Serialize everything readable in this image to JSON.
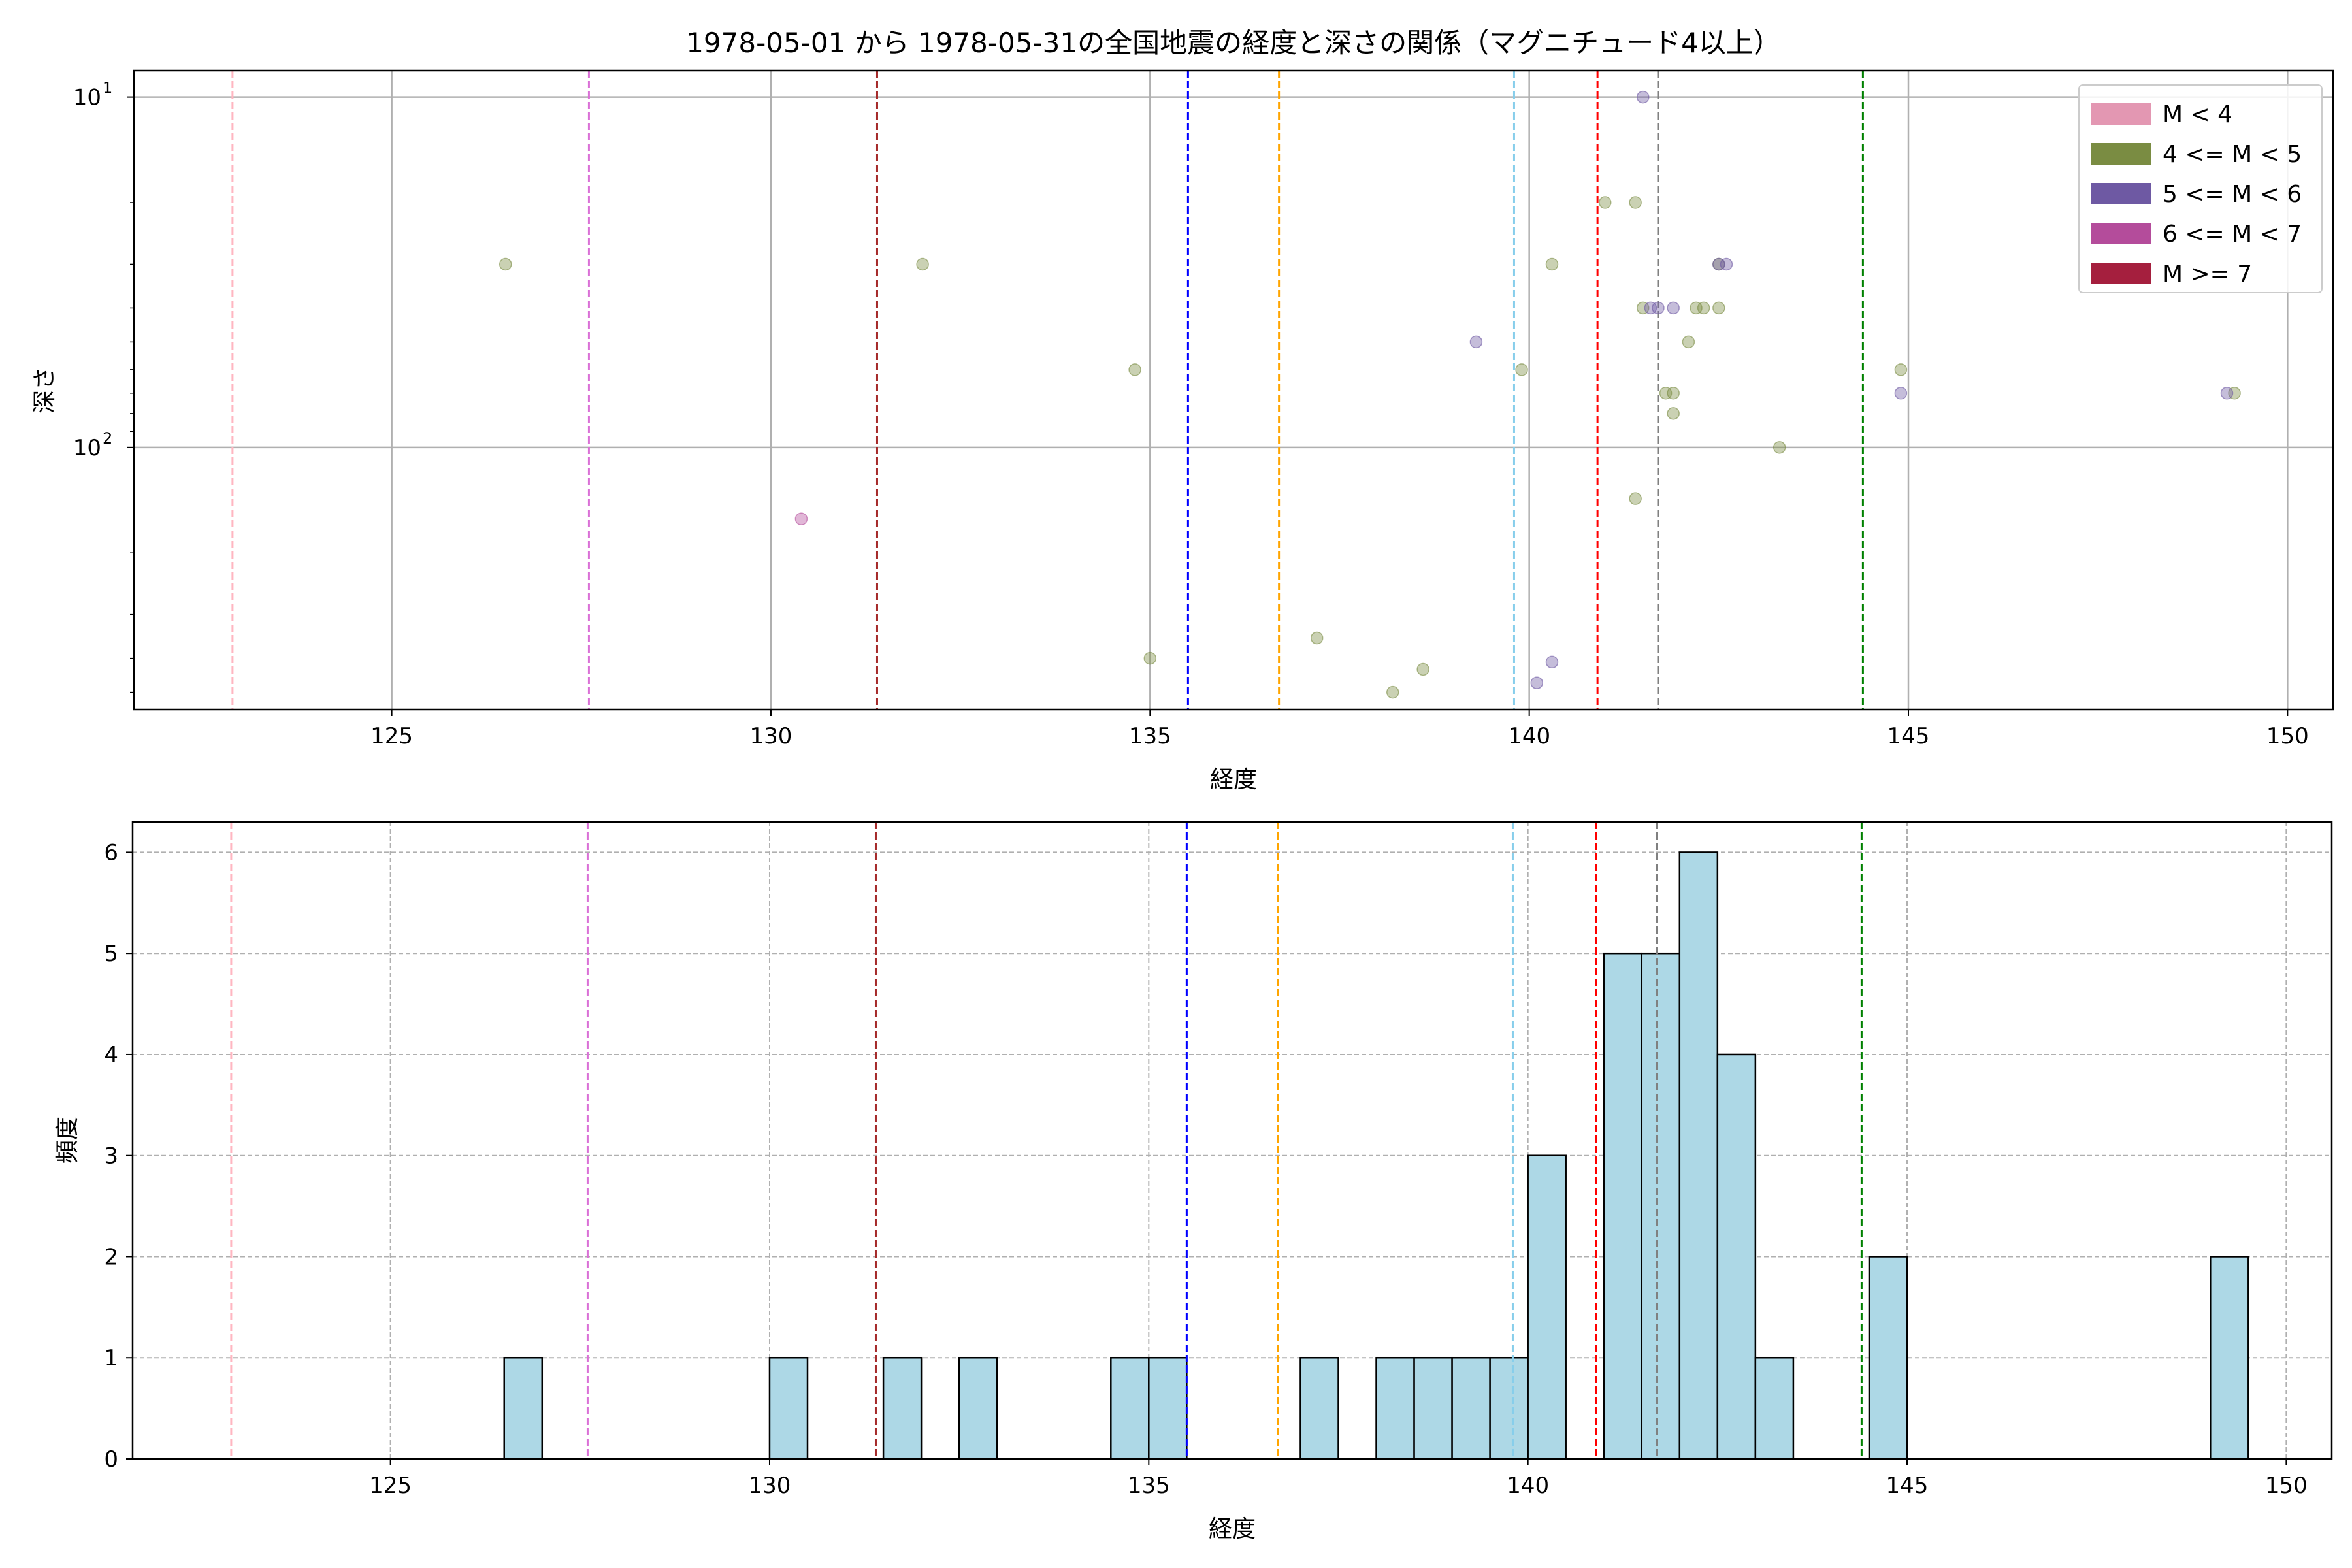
{
  "chart_data": [
    {
      "type": "scatter",
      "title": "1978-05-01 から 1978-05-31の全国地震の経度と深さの関係（マグニチュード4以上）",
      "xlabel": "経度",
      "ylabel": "深さ",
      "xlim": [
        121.6,
        150.6
      ],
      "ylim_log": [
        560,
        8.4
      ],
      "y_scale": "log",
      "y_inverted": true,
      "grid": true,
      "x_ticks": [
        125,
        130,
        135,
        140,
        145,
        150
      ],
      "y_ticks": [
        {
          "value": 10,
          "base": "10",
          "exp": "1"
        },
        {
          "value": 100,
          "base": "10",
          "exp": "2"
        }
      ],
      "y_minor_ticks": [
        20,
        30,
        40,
        50,
        60,
        70,
        80,
        90,
        200,
        300,
        400,
        500
      ],
      "legend": {
        "placement": "top-right",
        "entries": [
          {
            "label": "M < 4",
            "color": "#e397b2"
          },
          {
            "label": "4 <= M < 5",
            "color": "#7a8c42"
          },
          {
            "label": "5 <= M < 6",
            "color": "#6e59a3"
          },
          {
            "label": "6 <= M < 7",
            "color": "#b44c9b"
          },
          {
            "label": "M >= 7",
            "color": "#a51f3e"
          }
        ]
      },
      "vlines": [
        {
          "x": 122.9,
          "color": "#ffb6c1"
        },
        {
          "x": 127.6,
          "color": "#da70d6"
        },
        {
          "x": 131.4,
          "color": "#a52a2a"
        },
        {
          "x": 135.5,
          "color": "#0000ff"
        },
        {
          "x": 136.7,
          "color": "#ffa500"
        },
        {
          "x": 139.8,
          "color": "#87ceeb"
        },
        {
          "x": 140.9,
          "color": "#ff0000"
        },
        {
          "x": 141.7,
          "color": "#808080"
        },
        {
          "x": 144.4,
          "color": "#008000"
        }
      ],
      "series": [
        {
          "color": "#7a8c42",
          "points": [
            [
              126.5,
              30
            ],
            [
              132.0,
              30
            ],
            [
              134.8,
              60
            ],
            [
              135.0,
              400
            ],
            [
              137.2,
              350
            ],
            [
              138.2,
              500
            ],
            [
              138.6,
              430
            ],
            [
              139.9,
              60
            ],
            [
              140.3,
              30
            ],
            [
              141.0,
              20
            ],
            [
              141.4,
              20
            ],
            [
              141.5,
              40
            ],
            [
              141.4,
              140
            ],
            [
              141.8,
              70
            ],
            [
              141.9,
              70
            ],
            [
              141.9,
              80
            ],
            [
              142.2,
              40
            ],
            [
              142.3,
              40
            ],
            [
              142.1,
              50
            ],
            [
              142.5,
              40
            ],
            [
              142.5,
              30
            ],
            [
              143.3,
              100
            ],
            [
              144.9,
              60
            ],
            [
              149.3,
              70
            ]
          ]
        },
        {
          "color": "#6e59a3",
          "points": [
            [
              141.5,
              10
            ],
            [
              141.6,
              40
            ],
            [
              141.7,
              40
            ],
            [
              141.9,
              40
            ],
            [
              139.3,
              50
            ],
            [
              142.5,
              30
            ],
            [
              142.6,
              30
            ],
            [
              144.9,
              70
            ],
            [
              149.2,
              70
            ],
            [
              140.3,
              410
            ],
            [
              140.1,
              470
            ]
          ]
        },
        {
          "color": "#b44c9b",
          "points": [
            [
              130.4,
              160
            ]
          ]
        }
      ]
    },
    {
      "type": "bar",
      "xlabel": "経度",
      "ylabel": "頻度",
      "xlim": [
        121.6,
        150.6
      ],
      "ylim": [
        0,
        6.3
      ],
      "grid": true,
      "bar_color": "#add8e6",
      "x_ticks": [
        125,
        130,
        135,
        140,
        145,
        150
      ],
      "y_ticks": [
        0,
        1,
        2,
        3,
        4,
        5,
        6
      ],
      "vlines": [
        {
          "x": 122.9,
          "color": "#ffb6c1"
        },
        {
          "x": 127.6,
          "color": "#da70d6"
        },
        {
          "x": 131.4,
          "color": "#a52a2a"
        },
        {
          "x": 135.5,
          "color": "#0000ff"
        },
        {
          "x": 136.7,
          "color": "#ffa500"
        },
        {
          "x": 139.8,
          "color": "#87ceeb"
        },
        {
          "x": 140.9,
          "color": "#ff0000"
        },
        {
          "x": 141.7,
          "color": "#808080"
        },
        {
          "x": 144.4,
          "color": "#008000"
        }
      ],
      "bins": [
        {
          "x0": 126.5,
          "x1": 127.0,
          "count": 1
        },
        {
          "x0": 130.0,
          "x1": 130.5,
          "count": 1
        },
        {
          "x0": 131.5,
          "x1": 132.0,
          "count": 1
        },
        {
          "x0": 132.5,
          "x1": 133.0,
          "count": 1
        },
        {
          "x0": 134.5,
          "x1": 135.0,
          "count": 1
        },
        {
          "x0": 135.0,
          "x1": 135.5,
          "count": 1
        },
        {
          "x0": 137.0,
          "x1": 137.5,
          "count": 1
        },
        {
          "x0": 138.0,
          "x1": 138.5,
          "count": 1
        },
        {
          "x0": 138.5,
          "x1": 139.0,
          "count": 1
        },
        {
          "x0": 139.0,
          "x1": 139.5,
          "count": 1
        },
        {
          "x0": 139.5,
          "x1": 140.0,
          "count": 1
        },
        {
          "x0": 140.0,
          "x1": 140.5,
          "count": 3
        },
        {
          "x0": 141.0,
          "x1": 141.5,
          "count": 5
        },
        {
          "x0": 141.5,
          "x1": 142.0,
          "count": 5
        },
        {
          "x0": 142.0,
          "x1": 142.5,
          "count": 6
        },
        {
          "x0": 142.5,
          "x1": 143.0,
          "count": 4
        },
        {
          "x0": 143.0,
          "x1": 143.5,
          "count": 1
        },
        {
          "x0": 144.5,
          "x1": 145.0,
          "count": 2
        },
        {
          "x0": 149.0,
          "x1": 149.5,
          "count": 2
        }
      ]
    }
  ]
}
